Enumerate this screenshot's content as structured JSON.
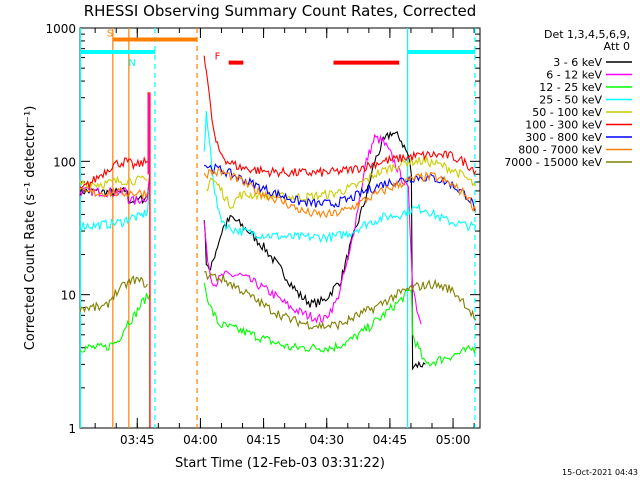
{
  "chart_data": {
    "type": "line",
    "title": "RHESSI Observing Summary Count Rates, Corrected",
    "xlabel": "Start Time (12-Feb-03 03:31:22)",
    "ylabel": "Corrected Count Rate (s⁻¹ detector⁻¹)",
    "yscale": "log",
    "xlim": [
      0,
      95
    ],
    "ylim": [
      1,
      1000
    ],
    "x_unit": "minutes since 03:31:22",
    "x_ticks": [
      {
        "label": "03:45",
        "value": 13.6
      },
      {
        "label": "04:00",
        "value": 28.6
      },
      {
        "label": "04:15",
        "value": 43.6
      },
      {
        "label": "04:30",
        "value": 58.6
      },
      {
        "label": "04:45",
        "value": 73.6
      },
      {
        "label": "05:00",
        "value": 88.6
      }
    ],
    "y_ticks": [
      {
        "label": "1",
        "value": 1
      },
      {
        "label": "10",
        "value": 10
      },
      {
        "label": "100",
        "value": 100
      },
      {
        "label": "1000",
        "value": 1000
      }
    ],
    "legend_header": [
      "Det 1,3,4,5,6,9,",
      "Att 0"
    ],
    "legend_position": "right",
    "footer_date": "15-Oct-2021 04:43",
    "series": [
      {
        "name": "3 - 6 keV",
        "color": "#000000",
        "points": [
          [
            0,
            60
          ],
          [
            10,
            58
          ],
          [
            11,
            62
          ],
          [
            11.5,
            52
          ],
          [
            13,
            50
          ],
          [
            16,
            54
          ],
          [
            16.6,
            80
          ],
          [
            29,
            null
          ],
          [
            29.5,
            38
          ],
          [
            30,
            18
          ],
          [
            31,
            15
          ],
          [
            32,
            20
          ],
          [
            34,
            32
          ],
          [
            36,
            38
          ],
          [
            40,
            30
          ],
          [
            44,
            22
          ],
          [
            48,
            15
          ],
          [
            52,
            10
          ],
          [
            55,
            8.5
          ],
          [
            58,
            9
          ],
          [
            62,
            13
          ],
          [
            64,
            22
          ],
          [
            68,
            55
          ],
          [
            70,
            100
          ],
          [
            72,
            140
          ],
          [
            74,
            165
          ],
          [
            76,
            150
          ],
          [
            78,
            110
          ],
          [
            78.7,
            80
          ],
          [
            79,
            3
          ],
          [
            82,
            3
          ],
          [
            84,
            null
          ]
        ]
      },
      {
        "name": "6 - 12 keV",
        "color": "#ff00ff",
        "points": [
          [
            0,
            60
          ],
          [
            10,
            58
          ],
          [
            11,
            62
          ],
          [
            11.5,
            52
          ],
          [
            13,
            50
          ],
          [
            16,
            54
          ],
          [
            16.6,
            80
          ],
          [
            29,
            null
          ],
          [
            29.5,
            35
          ],
          [
            30,
            22
          ],
          [
            31,
            14
          ],
          [
            32,
            12
          ],
          [
            34,
            14
          ],
          [
            38,
            14
          ],
          [
            42,
            12
          ],
          [
            46,
            10
          ],
          [
            50,
            8
          ],
          [
            54,
            7
          ],
          [
            58,
            6.5
          ],
          [
            61,
            9
          ],
          [
            64,
            20
          ],
          [
            66,
            45
          ],
          [
            68,
            100
          ],
          [
            70,
            150
          ],
          [
            72,
            140
          ],
          [
            74,
            110
          ],
          [
            76,
            80
          ],
          [
            78,
            60
          ],
          [
            79,
            12
          ],
          [
            80,
            8
          ],
          [
            81,
            6
          ]
        ]
      },
      {
        "name": "12 - 25 keV",
        "color": "#00ff00",
        "points": [
          [
            0,
            4
          ],
          [
            6,
            4
          ],
          [
            9,
            4.5
          ],
          [
            11,
            6
          ],
          [
            13,
            7
          ],
          [
            15,
            9
          ],
          [
            16.6,
            10
          ],
          [
            29,
            null
          ],
          [
            29.5,
            12
          ],
          [
            31,
            8
          ],
          [
            33,
            6
          ],
          [
            37,
            5.5
          ],
          [
            41,
            5
          ],
          [
            45,
            4.5
          ],
          [
            50,
            4
          ],
          [
            55,
            4
          ],
          [
            60,
            4
          ],
          [
            64,
            4.5
          ],
          [
            68,
            5.5
          ],
          [
            72,
            7
          ],
          [
            76,
            9
          ],
          [
            78.7,
            11
          ],
          [
            79,
            5
          ],
          [
            82,
            3
          ],
          [
            94,
            4
          ]
        ]
      },
      {
        "name": "25 - 50 keV",
        "color": "#00ffff",
        "points": [
          [
            0,
            33
          ],
          [
            4,
            33
          ],
          [
            10,
            35
          ],
          [
            12,
            38
          ],
          [
            14,
            38
          ],
          [
            16,
            42
          ],
          [
            16.6,
            65
          ],
          [
            29,
            null
          ],
          [
            29.5,
            120
          ],
          [
            30,
            220
          ],
          [
            31,
            120
          ],
          [
            32,
            60
          ],
          [
            33,
            40
          ],
          [
            35,
            32
          ],
          [
            38,
            30
          ],
          [
            44,
            28
          ],
          [
            50,
            27
          ],
          [
            56,
            27
          ],
          [
            60,
            27
          ],
          [
            64,
            29
          ],
          [
            68,
            34
          ],
          [
            72,
            38
          ],
          [
            76,
            40
          ],
          [
            79,
            44
          ],
          [
            82,
            44
          ],
          [
            84,
            40
          ],
          [
            87,
            36
          ],
          [
            90,
            34
          ],
          [
            94,
            32
          ]
        ]
      },
      {
        "name": "50 - 100 keV",
        "color": "#cccc00",
        "points": [
          [
            0,
            68
          ],
          [
            6,
            68
          ],
          [
            10,
            72
          ],
          [
            13,
            72
          ],
          [
            16,
            72
          ],
          [
            29,
            null
          ],
          [
            30,
            60
          ],
          [
            31,
            75
          ],
          [
            33,
            65
          ],
          [
            35,
            50
          ],
          [
            36,
            47
          ],
          [
            38,
            56
          ],
          [
            42,
            56
          ],
          [
            48,
            54
          ],
          [
            54,
            54
          ],
          [
            60,
            57
          ],
          [
            66,
            66
          ],
          [
            70,
            80
          ],
          [
            74,
            90
          ],
          [
            78,
            100
          ],
          [
            82,
            100
          ],
          [
            85,
            95
          ],
          [
            88,
            88
          ],
          [
            91,
            78
          ],
          [
            94,
            65
          ]
        ]
      },
      {
        "name": "100 - 300 keV",
        "color": "#ff0000",
        "points": [
          [
            0,
            60
          ],
          [
            4,
            75
          ],
          [
            8,
            95
          ],
          [
            11,
            100
          ],
          [
            13,
            92
          ],
          [
            16,
            100
          ],
          [
            29,
            null
          ],
          [
            29.5,
            620
          ],
          [
            30,
            500
          ],
          [
            31,
            250
          ],
          [
            32,
            150
          ],
          [
            33,
            120
          ],
          [
            35,
            100
          ],
          [
            38,
            90
          ],
          [
            44,
            84
          ],
          [
            50,
            82
          ],
          [
            56,
            82
          ],
          [
            60,
            83
          ],
          [
            64,
            86
          ],
          [
            68,
            92
          ],
          [
            72,
            100
          ],
          [
            76,
            105
          ],
          [
            80,
            110
          ],
          [
            84,
            112
          ],
          [
            88,
            110
          ],
          [
            91,
            100
          ],
          [
            94,
            85
          ]
        ]
      },
      {
        "name": "300 - 800 keV",
        "color": "#0000ff",
        "points": [
          [
            29.5,
            95
          ],
          [
            31,
            90
          ],
          [
            34,
            85
          ],
          [
            40,
            70
          ],
          [
            46,
            58
          ],
          [
            52,
            50
          ],
          [
            56,
            48
          ],
          [
            60,
            48
          ],
          [
            64,
            52
          ],
          [
            68,
            60
          ],
          [
            72,
            68
          ],
          [
            76,
            72
          ],
          [
            80,
            76
          ],
          [
            84,
            75
          ],
          [
            88,
            68
          ],
          [
            92,
            55
          ],
          [
            94,
            44
          ]
        ]
      },
      {
        "name": "800 - 7000 keV",
        "color": "#ff8000",
        "points": [
          [
            0,
            58
          ],
          [
            8,
            58
          ],
          [
            16,
            58
          ],
          [
            29,
            null
          ],
          [
            29.5,
            80
          ],
          [
            31,
            83
          ],
          [
            34,
            82
          ],
          [
            38,
            72
          ],
          [
            42,
            60
          ],
          [
            48,
            50
          ],
          [
            53,
            42
          ],
          [
            56,
            40
          ],
          [
            60,
            40
          ],
          [
            64,
            44
          ],
          [
            68,
            52
          ],
          [
            72,
            60
          ],
          [
            76,
            68
          ],
          [
            80,
            75
          ],
          [
            84,
            77
          ],
          [
            88,
            68
          ],
          [
            92,
            55
          ],
          [
            94,
            42
          ]
        ]
      },
      {
        "name": "7000 - 15000 keV",
        "color": "#808000",
        "points": [
          [
            0,
            8
          ],
          [
            6,
            8
          ],
          [
            8,
            10
          ],
          [
            11,
            12
          ],
          [
            13,
            13
          ],
          [
            16,
            12
          ],
          [
            29,
            null
          ],
          [
            29.5,
            14
          ],
          [
            31,
            14
          ],
          [
            34,
            13
          ],
          [
            38,
            11
          ],
          [
            42,
            9
          ],
          [
            46,
            7.5
          ],
          [
            50,
            6.5
          ],
          [
            54,
            6
          ],
          [
            58,
            5.8
          ],
          [
            62,
            6
          ],
          [
            66,
            7
          ],
          [
            70,
            8
          ],
          [
            74,
            9.5
          ],
          [
            78,
            11
          ],
          [
            80,
            11.5
          ],
          [
            84,
            12
          ],
          [
            88,
            11
          ],
          [
            91,
            9
          ],
          [
            94,
            6.5
          ]
        ]
      }
    ],
    "spikes": [
      {
        "color": "#ff0000",
        "x": 16.2,
        "from": 80,
        "to": 330
      },
      {
        "color": "#ff00ff",
        "x": 16.3,
        "from": 80,
        "to": 320
      },
      {
        "color": "#ff0000",
        "x": 16.6,
        "from": 1,
        "to": 330
      }
    ],
    "vlines": [
      {
        "x": 0.1,
        "color": "#00ffff",
        "style": "solid"
      },
      {
        "x": 7.8,
        "color": "#ff8000",
        "style": "solid"
      },
      {
        "x": 11.6,
        "color": "#ff8000",
        "style": "solid"
      },
      {
        "x": 17.8,
        "color": "#00ffff",
        "style": "dashed"
      },
      {
        "x": 27.8,
        "color": "#ff8000",
        "style": "dashed"
      },
      {
        "x": 77.8,
        "color": "#00ffff",
        "style": "solid"
      },
      {
        "x": 93.8,
        "color": "#00ffff",
        "style": "dashed"
      }
    ],
    "flag_bars": [
      {
        "label": "S",
        "color": "#ff8000",
        "x0": 7.8,
        "x1": 27.8,
        "y": 820
      },
      {
        "label": "N",
        "color": "#00ffff",
        "x0": 0.1,
        "x1": 17.8,
        "y": 660
      },
      {
        "label": "",
        "color": "#00ffff",
        "x0": 77.8,
        "x1": 93.8,
        "y": 660
      },
      {
        "label": "F",
        "color": "#ff0000",
        "x0": 35.3,
        "x1": 38.8,
        "y": 550
      },
      {
        "label": "",
        "color": "#ff0000",
        "x0": 60.2,
        "x1": 75.8,
        "y": 550
      }
    ]
  }
}
